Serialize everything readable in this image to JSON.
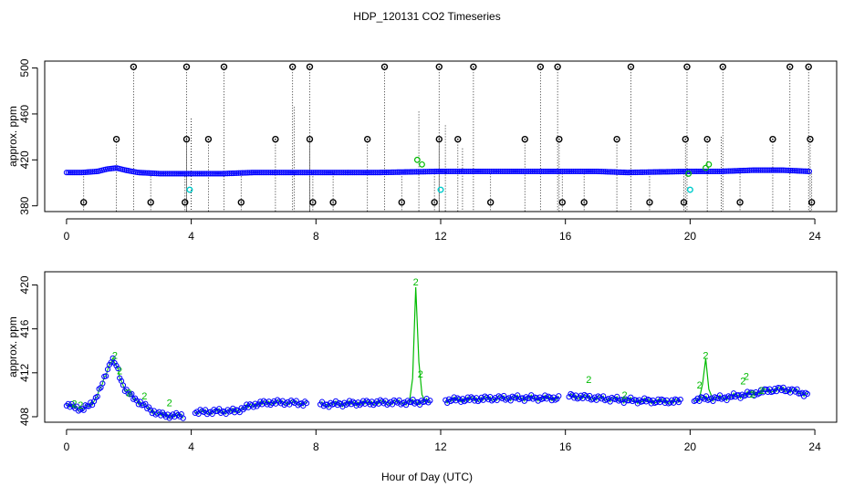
{
  "title": "HDP_120131  CO2 Timeseries",
  "xlabel": "Hour of Day (UTC)",
  "chart_data": [
    {
      "type": "scatter",
      "panel": "top",
      "ylabel": "approx. ppm",
      "xlim": [
        -0.7,
        24.7
      ],
      "ylim": [
        375,
        506
      ],
      "x_ticks": [
        0,
        4,
        8,
        12,
        16,
        20,
        24
      ],
      "y_ticks": [
        380,
        420,
        460,
        500
      ],
      "grid": false,
      "colors": {
        "baseline": "#0000ff",
        "flagged": "#000000",
        "green": "#00bb00",
        "cyan": "#00cccc",
        "drop": "#000000"
      },
      "baseline_profile": [
        [
          0,
          409
        ],
        [
          0.5,
          409
        ],
        [
          1.0,
          410
        ],
        [
          1.3,
          412
        ],
        [
          1.6,
          413
        ],
        [
          1.9,
          411
        ],
        [
          2.3,
          409
        ],
        [
          3,
          408
        ],
        [
          4,
          408
        ],
        [
          5,
          408
        ],
        [
          6,
          409
        ],
        [
          7,
          409
        ],
        [
          8,
          409
        ],
        [
          10,
          409
        ],
        [
          12,
          410
        ],
        [
          14,
          410
        ],
        [
          16,
          410
        ],
        [
          17,
          410
        ],
        [
          18,
          409
        ],
        [
          20,
          410
        ],
        [
          21,
          410
        ],
        [
          22,
          411
        ],
        [
          23,
          411
        ],
        [
          23.8,
          410
        ]
      ],
      "flagged_high": [
        2.15,
        3.85,
        5.05,
        7.25,
        7.8,
        10.2,
        11.95,
        13.05,
        15.2,
        15.75,
        18.1,
        19.9,
        21.05,
        23.2,
        23.8
      ],
      "flagged_400": [
        1.6,
        3.85,
        4.55,
        6.7,
        7.8,
        9.65,
        11.95,
        12.55,
        14.7,
        15.8,
        17.65,
        19.85,
        20.55,
        22.65,
        23.85
      ],
      "flagged_low": [
        0.55,
        2.7,
        3.8,
        5.6,
        7.9,
        8.55,
        10.75,
        11.8,
        13.6,
        15.9,
        16.6,
        18.7,
        19.8,
        21.6,
        23.9
      ],
      "green_points": [
        [
          11.25,
          420
        ],
        [
          11.4,
          416
        ],
        [
          20.5,
          413
        ],
        [
          20.6,
          416
        ],
        [
          19.95,
          408
        ]
      ],
      "cyan_points": [
        [
          3.95,
          394
        ],
        [
          12.0,
          394
        ],
        [
          20.0,
          394
        ]
      ],
      "extra_drops": [
        [
          4.0,
          456
        ],
        [
          7.3,
          466
        ],
        [
          11.3,
          462
        ],
        [
          12.15,
          450
        ],
        [
          21.0,
          440
        ],
        [
          12.7,
          430
        ]
      ]
    },
    {
      "type": "scatter",
      "panel": "bottom",
      "ylabel": "approx. ppm",
      "xlim": [
        -0.7,
        24.7
      ],
      "ylim": [
        407.5,
        421.2
      ],
      "x_ticks": [
        0,
        4,
        8,
        12,
        16,
        20,
        24
      ],
      "y_ticks": [
        408,
        412,
        416,
        420
      ],
      "grid": false,
      "colors": {
        "points": "#0000ff",
        "line": "#00bb00",
        "label": "#00bb00"
      },
      "point_label": "2",
      "profile": [
        [
          0,
          409
        ],
        [
          0.3,
          408.9
        ],
        [
          0.5,
          408.6
        ],
        [
          0.7,
          409
        ],
        [
          0.9,
          409.5
        ],
        [
          1.1,
          410.6
        ],
        [
          1.3,
          412.2
        ],
        [
          1.45,
          413.3
        ],
        [
          1.6,
          412.6
        ],
        [
          1.75,
          411.3
        ],
        [
          1.9,
          410.4
        ],
        [
          2.1,
          409.8
        ],
        [
          2.4,
          409.2
        ],
        [
          2.7,
          408.6
        ],
        [
          3.0,
          408.2
        ],
        [
          3.3,
          408.1
        ],
        [
          3.75,
          408.1
        ],
        [
          4.1,
          408.4
        ],
        [
          5.0,
          408.5
        ],
        [
          5.4,
          408.5
        ],
        [
          6.0,
          409.1
        ],
        [
          6.5,
          409.3
        ],
        [
          7.0,
          409.3
        ],
        [
          7.75,
          409.2
        ],
        [
          8.1,
          409.1
        ],
        [
          9.0,
          409.2
        ],
        [
          10,
          409.3
        ],
        [
          11,
          409.3
        ],
        [
          11.7,
          409.4
        ],
        [
          12.1,
          409.5
        ],
        [
          13,
          409.6
        ],
        [
          14,
          409.7
        ],
        [
          15,
          409.7
        ],
        [
          15.8,
          409.7
        ],
        [
          16.1,
          409.9
        ],
        [
          17,
          409.7
        ],
        [
          18,
          409.5
        ],
        [
          19,
          409.4
        ],
        [
          19.7,
          409.4
        ],
        [
          20.1,
          409.6
        ],
        [
          21,
          409.7
        ],
        [
          21.5,
          409.9
        ],
        [
          22,
          410.1
        ],
        [
          22.5,
          410.4
        ],
        [
          23,
          410.5
        ],
        [
          23.4,
          410.3
        ],
        [
          23.8,
          410.0
        ]
      ],
      "gaps": [
        [
          3.75,
          4.1
        ],
        [
          7.75,
          8.1
        ],
        [
          11.7,
          12.1
        ],
        [
          15.8,
          16.1
        ],
        [
          19.7,
          20.1
        ]
      ],
      "green_labels": [
        [
          0.25,
          409.1
        ],
        [
          0.45,
          409.0
        ],
        [
          1.55,
          413.5
        ],
        [
          1.7,
          412.1
        ],
        [
          2.0,
          410.1
        ],
        [
          2.5,
          409.8
        ],
        [
          3.3,
          409.2
        ],
        [
          11.2,
          420.2
        ],
        [
          11.35,
          411.8
        ],
        [
          16.75,
          411.3
        ],
        [
          17.9,
          409.9
        ],
        [
          20.3,
          410.8
        ],
        [
          20.5,
          413.5
        ],
        [
          21.8,
          411.6
        ],
        [
          21.7,
          411.2
        ],
        [
          22.3,
          410.3
        ],
        [
          22.0,
          410.0
        ]
      ],
      "green_spikes": [
        [
          11.0,
          409.4
        ],
        [
          11.1,
          411.5
        ],
        [
          11.2,
          419.8
        ],
        [
          11.3,
          413
        ],
        [
          11.4,
          410
        ],
        [
          11.5,
          409.4
        ],
        [
          20.3,
          409.7
        ],
        [
          20.4,
          411
        ],
        [
          20.5,
          413.3
        ],
        [
          20.6,
          410.5
        ],
        [
          20.7,
          409.8
        ]
      ]
    }
  ]
}
